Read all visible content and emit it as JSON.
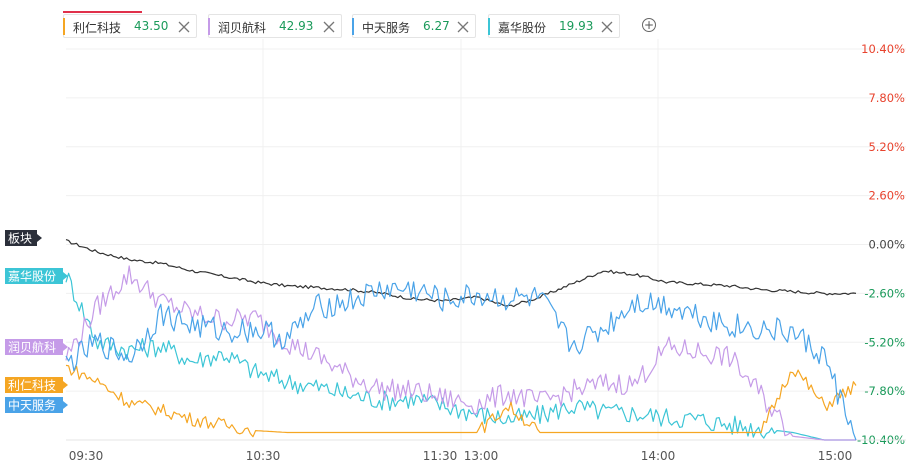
{
  "tabs": [
    {
      "name": "利仁科技",
      "value": "43.50",
      "color": "#f5a623",
      "close_icon": "close-icon"
    },
    {
      "name": "润贝航科",
      "value": "42.93",
      "color": "#c59be8",
      "close_icon": "close-icon"
    },
    {
      "name": "中天服务",
      "value": "6.27",
      "color": "#4aa3e8",
      "close_icon": "close-icon"
    },
    {
      "name": "嘉华股份",
      "value": "19.93",
      "color": "#3cc5d6",
      "close_icon": "close-icon"
    }
  ],
  "add_button": {
    "icon": "plus-circle-icon"
  },
  "value_color": "#1a9a5a",
  "chart_data": {
    "type": "line",
    "x_ticks": [
      "09:30",
      "10:30",
      "11:30",
      "13:00",
      "14:00",
      "15:00"
    ],
    "y_ticks": [
      "10.40%",
      "7.80%",
      "5.20%",
      "2.60%",
      "0.00%",
      "-2.60%",
      "-5.20%",
      "-7.80%",
      "-10.40%"
    ],
    "ylim": [
      -10.4,
      10.4
    ],
    "y_colors": {
      "positive": "#e8432e",
      "zero": "#444444",
      "negative": "#1a9a5a"
    },
    "grid": true,
    "series": [
      {
        "name": "板块",
        "color": "#333333",
        "label_bg": "#2b2f3a",
        "values": [
          0.2,
          -0.4,
          -0.8,
          -1.0,
          -1.4,
          -1.7,
          -2.0,
          -2.2,
          -2.3,
          -2.4,
          -2.6,
          -2.9,
          -3.0,
          -2.8,
          -3.3,
          -2.8,
          -2.1,
          -1.4,
          -1.6,
          -2.0,
          -2.1,
          -2.2,
          -2.4,
          -2.5,
          -2.6,
          -2.6
        ]
      },
      {
        "name": "嘉华股份",
        "color": "#3cc5d6",
        "label_bg": "#3cc5d6",
        "values": [
          -1.6,
          -5.2,
          -5.6,
          -5.4,
          -6.2,
          -5.8,
          -6.8,
          -7.3,
          -7.6,
          -8.0,
          -8.3,
          -8.2,
          -8.6,
          -9.0,
          -9.3,
          -9.1,
          -8.6,
          -8.9,
          -9.0,
          -9.2,
          -9.3,
          -9.6,
          -9.8,
          -10.0,
          -10.4,
          -10.4
        ]
      },
      {
        "name": "润贝航科",
        "color": "#c59be8",
        "label_bg": "#c59be8",
        "values": [
          -6.0,
          -3.3,
          -1.6,
          -3.0,
          -3.7,
          -4.0,
          -3.9,
          -5.2,
          -6.0,
          -7.0,
          -7.7,
          -7.8,
          -8.2,
          -8.5,
          -7.9,
          -8.4,
          -7.8,
          -7.4,
          -7.4,
          -5.5,
          -5.7,
          -6.0,
          -8.0,
          -10.2,
          -10.4,
          -10.4
        ]
      },
      {
        "name": "利仁科技",
        "color": "#f5a623",
        "label_bg": "#f5a623",
        "values": [
          -6.5,
          -7.3,
          -8.4,
          -8.8,
          -9.3,
          -9.6,
          -9.9,
          -10.0,
          -10.0,
          -10.0,
          -10.0,
          -10.0,
          -10.0,
          -10.0,
          -8.6,
          -10.0,
          -10.0,
          -10.0,
          -10.0,
          -10.0,
          -10.0,
          -10.0,
          -10.0,
          -6.5,
          -8.6,
          -7.5
        ]
      },
      {
        "name": "中天服务",
        "color": "#4aa3e8",
        "label_bg": "#4aa3e8",
        "values": [
          -6.4,
          -5.2,
          -6.0,
          -3.7,
          -4.3,
          -4.6,
          -4.5,
          -5.0,
          -3.3,
          -3.0,
          -2.4,
          -2.4,
          -3.0,
          -2.7,
          -2.9,
          -2.9,
          -5.4,
          -4.5,
          -3.0,
          -3.2,
          -3.7,
          -4.3,
          -4.5,
          -4.7,
          -6.0,
          -10.4
        ]
      }
    ]
  }
}
